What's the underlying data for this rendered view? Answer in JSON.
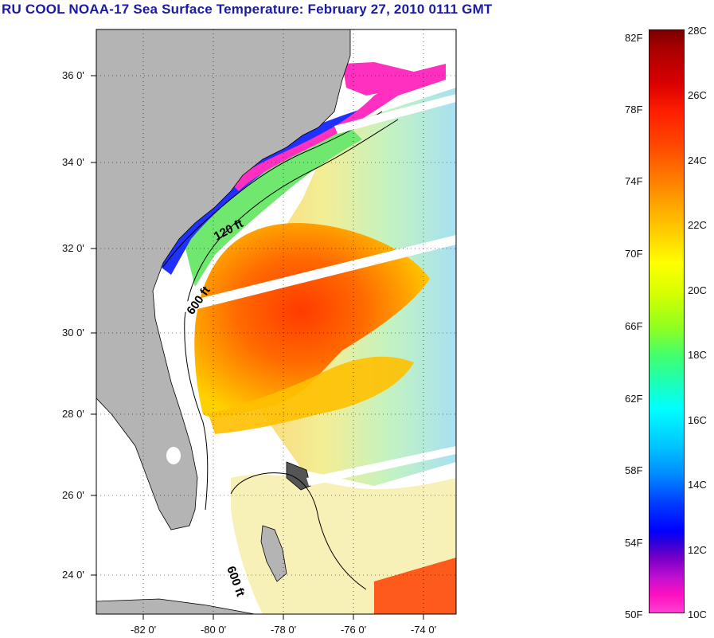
{
  "title": "RU COOL  NOAA-17  Sea Surface Temperature:  February 27, 2010 0111 GMT",
  "map": {
    "lat_labels": [
      "36 0'",
      "34 0'",
      "32 0'",
      "30 0'",
      "28 0'",
      "26 0'",
      "24 0'"
    ],
    "lon_labels": [
      "-82 0'",
      "-80 0'",
      "-78 0'",
      "-76 0'",
      "-74 0'"
    ],
    "contour_labels": [
      "120 ft",
      "600 ft",
      "600 ft"
    ],
    "land_color": "#b4b4b4",
    "no_data_color": "#ffffff"
  },
  "colorbar": {
    "fahrenheit": [
      "82F",
      "78F",
      "74F",
      "70F",
      "66F",
      "62F",
      "58F",
      "54F",
      "50F"
    ],
    "celsius": [
      "28C",
      "26C",
      "24C",
      "22C",
      "20C",
      "18C",
      "16C",
      "14C",
      "12C",
      "10C"
    ]
  }
}
